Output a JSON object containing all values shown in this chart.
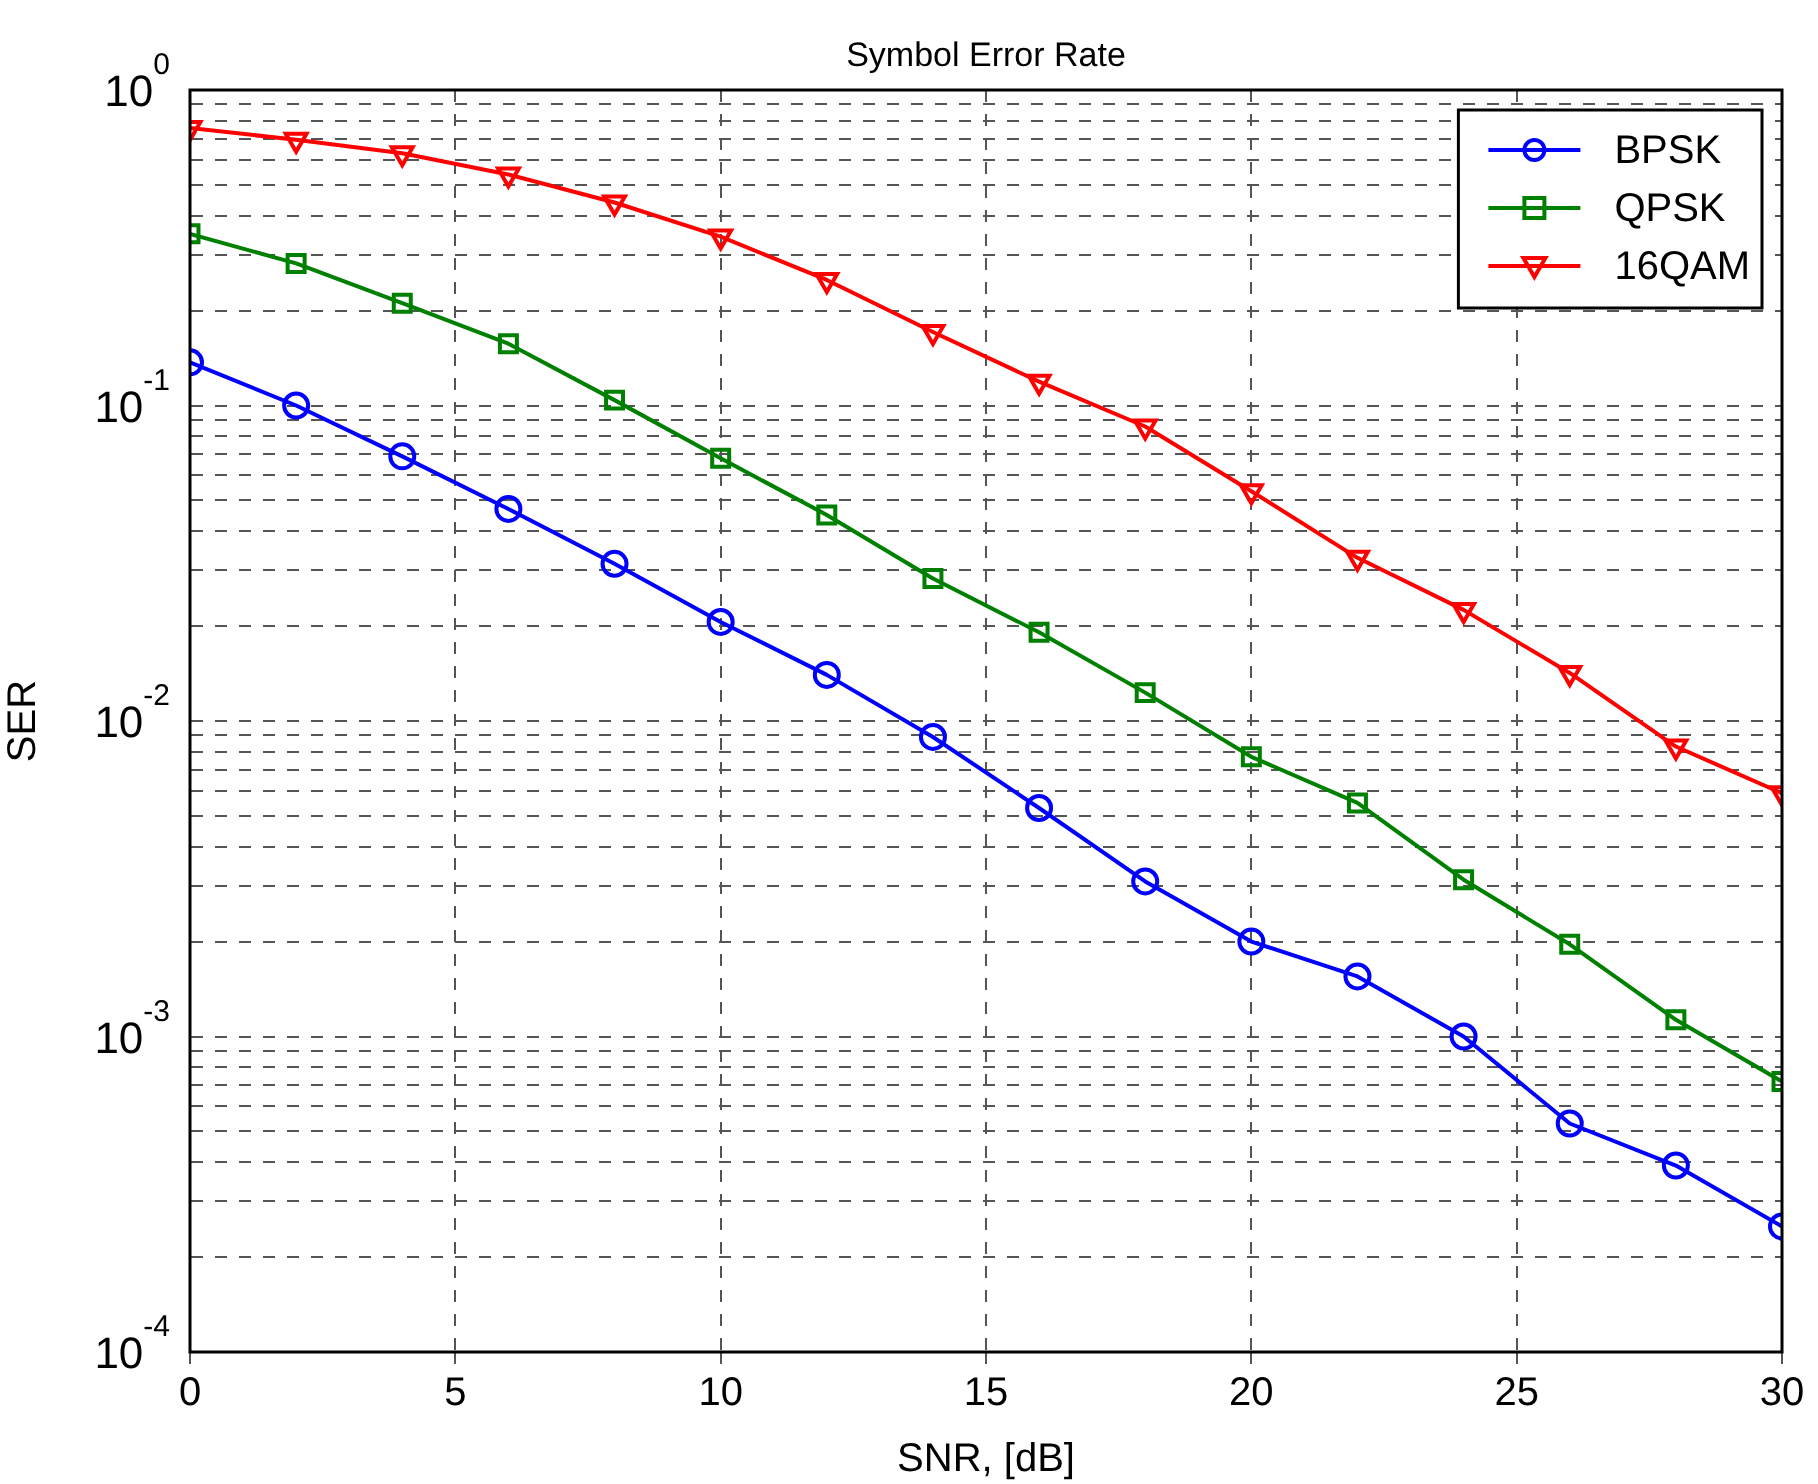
{
  "chart_data": {
    "type": "line",
    "title": "Symbol Error Rate",
    "xlabel": "SNR, [dB]",
    "ylabel": "SER",
    "x": [
      0,
      2,
      4,
      6,
      8,
      10,
      12,
      14,
      16,
      18,
      20,
      22,
      24,
      26,
      28,
      30
    ],
    "series": [
      {
        "name": "BPSK",
        "color": "#0000ff",
        "marker": "circle",
        "values": [
          0.137,
          0.1,
          0.069,
          0.047,
          0.0315,
          0.0206,
          0.014,
          0.0089,
          0.0053,
          0.0031,
          0.002,
          0.00155,
          0.001,
          0.00053,
          0.00039,
          0.00025
        ]
      },
      {
        "name": "QPSK",
        "color": "#008000",
        "marker": "square",
        "values": [
          0.35,
          0.282,
          0.211,
          0.157,
          0.104,
          0.068,
          0.045,
          0.0283,
          0.0191,
          0.0123,
          0.0077,
          0.0055,
          0.00314,
          0.00196,
          0.00113,
          0.00072
        ]
      },
      {
        "name": "16QAM",
        "color": "#ff0000",
        "marker": "triangle-down",
        "values": [
          0.758,
          0.695,
          0.63,
          0.54,
          0.44,
          0.343,
          0.25,
          0.171,
          0.119,
          0.0858,
          0.0535,
          0.0329,
          0.0225,
          0.0142,
          0.0083,
          0.0059
        ]
      }
    ],
    "log": "y",
    "xlim": [
      0,
      30
    ],
    "xticks": [
      0,
      5,
      10,
      15,
      20,
      25,
      30
    ],
    "ylim": [
      0.0001,
      1
    ],
    "yticks": [
      {
        "value": 0.0001,
        "label": "10$^{-4}$"
      },
      {
        "value": 0.0002,
        "label": null
      },
      {
        "value": 0.0003,
        "label": null
      },
      {
        "value": 0.0004,
        "label": null
      },
      {
        "value": 0.0005,
        "label": null
      },
      {
        "value": 0.0006,
        "label": null
      },
      {
        "value": 0.0007,
        "label": null
      },
      {
        "value": 0.0008,
        "label": null
      },
      {
        "value": 0.0009,
        "label": null
      },
      {
        "value": 0.001,
        "label": "10$^{-3}$"
      },
      {
        "value": 0.002,
        "label": null
      },
      {
        "value": 0.003,
        "label": null
      },
      {
        "value": 0.004,
        "label": null
      },
      {
        "value": 0.005,
        "label": null
      },
      {
        "value": 0.006,
        "label": null
      },
      {
        "value": 0.007,
        "label": null
      },
      {
        "value": 0.008,
        "label": null
      },
      {
        "value": 0.009,
        "label": null
      },
      {
        "value": 0.01,
        "label": "10$^{-2}$"
      },
      {
        "value": 0.02,
        "label": null
      },
      {
        "value": 0.03,
        "label": null
      },
      {
        "value": 0.04,
        "label": null
      },
      {
        "value": 0.05,
        "label": null
      },
      {
        "value": 0.06,
        "label": null
      },
      {
        "value": 0.07,
        "label": null
      },
      {
        "value": 0.08,
        "label": null
      },
      {
        "value": 0.09,
        "label": null
      },
      {
        "value": 0.1,
        "label": "10$^{-1}$"
      },
      {
        "value": 0.2,
        "label": null
      },
      {
        "value": 0.3,
        "label": null
      },
      {
        "value": 0.4,
        "label": null
      },
      {
        "value": 0.5,
        "label": null
      },
      {
        "value": 0.6,
        "label": null
      },
      {
        "value": 0.7,
        "label": null
      },
      {
        "value": 0.8,
        "label": null
      },
      {
        "value": 0.9,
        "label": null
      },
      {
        "value": 1,
        "label": "10$^{0}$"
      }
    ],
    "grid": true,
    "line_style": "solid",
    "legend": "top right"
  }
}
